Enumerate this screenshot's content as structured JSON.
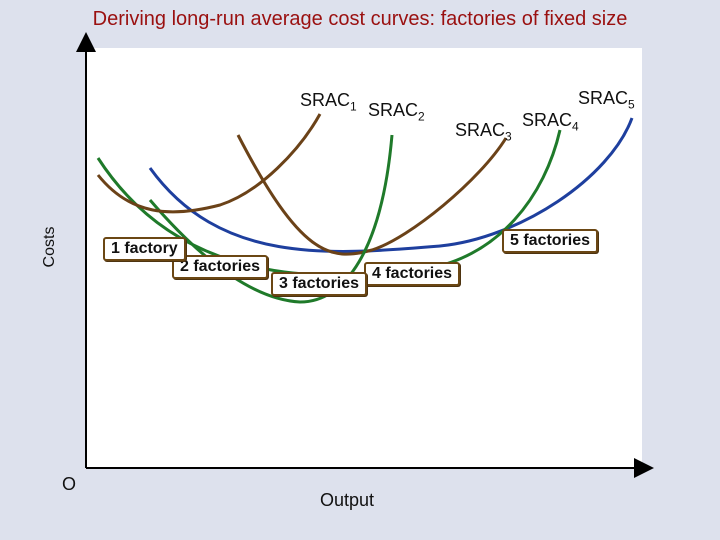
{
  "title": "Deriving long-run average cost curves: factories of fixed size",
  "axes": {
    "y_label": "Costs",
    "x_label": "Output",
    "origin": "O"
  },
  "curves": [
    {
      "label": "SRAC",
      "sub": "1",
      "color": "#6b4218"
    },
    {
      "label": "SRAC",
      "sub": "2",
      "color": "#1f7a2a"
    },
    {
      "label": "SRAC",
      "sub": "3",
      "color": "#6b4218"
    },
    {
      "label": "SRAC",
      "sub": "4",
      "color": "#1f7a2a"
    },
    {
      "label": "SRAC",
      "sub": "5",
      "color": "#1e3f9e"
    }
  ],
  "factory_labels": [
    "1 factory",
    "2 factories",
    "3 factories",
    "4 factories",
    "5 factories"
  ]
}
